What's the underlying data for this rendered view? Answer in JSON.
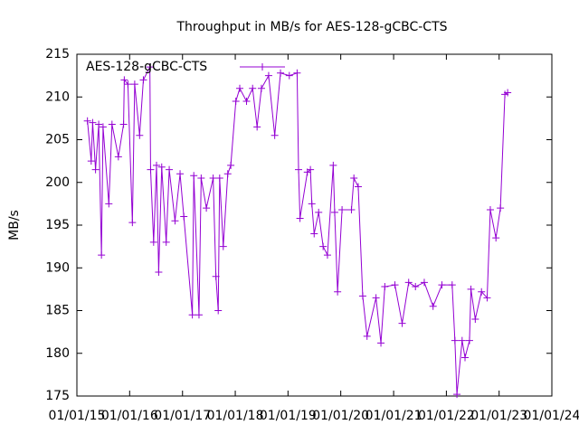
{
  "chart_data": {
    "type": "line",
    "title": "Throughput in MB/s for AES-128-gCBC-CTS",
    "y_label": "MB/s",
    "legend_position": "top-left",
    "series": [
      {
        "name": "AES-128-gCBC-CTS",
        "color": "#9400d3",
        "x": [
          "2015-03-15",
          "2015-04-10",
          "2015-04-20",
          "2015-05-10",
          "2015-06-01",
          "2015-06-20",
          "2015-07-01",
          "2015-08-10",
          "2015-09-01",
          "2015-10-15",
          "2015-11-20",
          "2015-11-25",
          "2015-12-20",
          "2016-01-20",
          "2016-02-05",
          "2016-03-10",
          "2016-04-05",
          "2016-05-20",
          "2016-05-25",
          "2016-06-15",
          "2016-07-05",
          "2016-07-20",
          "2016-08-10",
          "2016-09-10",
          "2016-10-01",
          "2016-11-10",
          "2016-12-15",
          "2017-01-10",
          "2017-03-10",
          "2017-03-20",
          "2017-04-25",
          "2017-05-10",
          "2017-06-15",
          "2017-08-01",
          "2017-08-20",
          "2017-09-05",
          "2017-09-15",
          "2017-10-10",
          "2017-11-10",
          "2017-12-01",
          "2018-01-05",
          "2018-02-01",
          "2018-03-20",
          "2018-05-01",
          "2018-06-01",
          "2018-07-01",
          "2018-08-20",
          "2018-10-01",
          "2018-11-10",
          "2019-01-10",
          "2019-03-05",
          "2019-03-15",
          "2019-03-25",
          "2019-05-15",
          "2019-06-05",
          "2019-06-15",
          "2019-07-01",
          "2019-08-01",
          "2019-09-01",
          "2019-10-01",
          "2019-11-10",
          "2019-11-20",
          "2019-12-10",
          "2020-01-10",
          "2020-03-15",
          "2020-04-01",
          "2020-05-01",
          "2020-06-01",
          "2020-07-01",
          "2020-09-01",
          "2020-10-05",
          "2020-11-01",
          "2021-01-10",
          "2021-03-01",
          "2021-04-15",
          "2021-06-01",
          "2021-08-01",
          "2021-10-01",
          "2021-12-01",
          "2022-02-10",
          "2022-03-01",
          "2022-03-15",
          "2022-04-20",
          "2022-05-10",
          "2022-06-10",
          "2022-06-20",
          "2022-07-20",
          "2022-09-01",
          "2022-10-10",
          "2022-11-01",
          "2022-12-10",
          "2023-01-10",
          "2023-02-10",
          "2023-03-01"
        ],
        "values": [
          207.2,
          202.5,
          207,
          201.5,
          206.8,
          191.5,
          206.5,
          197.5,
          206.8,
          203,
          206.8,
          212,
          211.5,
          195.3,
          211.5,
          205.5,
          212,
          213.5,
          201.5,
          193,
          202,
          189.5,
          201.8,
          193,
          201.5,
          195.5,
          201,
          196,
          184.5,
          200.8,
          184.5,
          200.5,
          197,
          200.5,
          189,
          185,
          200.5,
          192.5,
          201,
          202,
          209.5,
          211,
          209.5,
          211,
          206.5,
          211,
          212.5,
          205.5,
          212.8,
          212.5,
          212.8,
          201.5,
          195.8,
          201.2,
          201.5,
          197.5,
          194,
          196.5,
          192.5,
          191.5,
          202,
          196.5,
          187.2,
          196.8,
          196.8,
          200.5,
          199.5,
          186.7,
          182,
          186.5,
          181.2,
          187.8,
          188,
          183.5,
          188.3,
          187.8,
          188.3,
          185.5,
          188,
          188,
          181.5,
          175.2,
          181.5,
          179.5,
          181.5,
          187.5,
          184,
          187.2,
          186.5,
          196.8,
          193.5,
          197,
          210.3,
          210.5
        ]
      }
    ],
    "xlim": [
      "2015-01-01",
      "2024-01-01"
    ],
    "xticks": [
      {
        "value": "2015-01-01",
        "label": "01/01/15"
      },
      {
        "value": "2016-01-01",
        "label": "01/01/16"
      },
      {
        "value": "2017-01-01",
        "label": "01/01/17"
      },
      {
        "value": "2018-01-01",
        "label": "01/01/18"
      },
      {
        "value": "2019-01-01",
        "label": "01/01/19"
      },
      {
        "value": "2020-01-01",
        "label": "01/01/20"
      },
      {
        "value": "2021-01-01",
        "label": "01/01/21"
      },
      {
        "value": "2022-01-01",
        "label": "01/01/22"
      },
      {
        "value": "2023-01-01",
        "label": "01/01/23"
      },
      {
        "value": "2024-01-01",
        "label": "01/01/24"
      }
    ],
    "ylim": [
      175,
      215
    ],
    "yticks": [
      175,
      180,
      185,
      190,
      195,
      200,
      205,
      210,
      215
    ]
  }
}
